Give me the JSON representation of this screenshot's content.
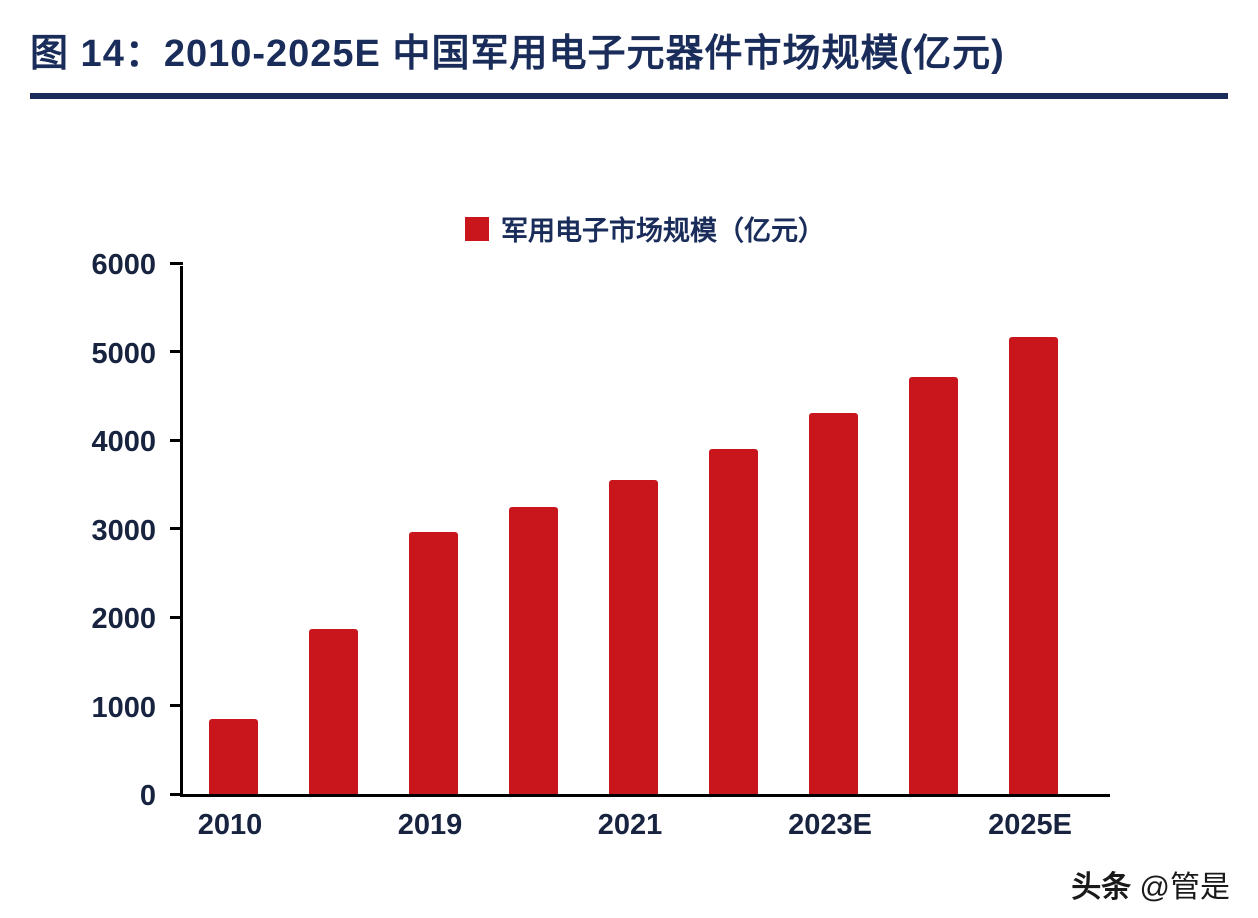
{
  "header": {
    "title": "图 14：2010-2025E 中国军用电子元器件市场规模(亿元)"
  },
  "chart_data": {
    "type": "bar",
    "title": "2010-2025E 中国军用电子元器件市场规模(亿元)",
    "legend": "军用电子市场规模（亿元）",
    "categories": [
      "2010",
      "",
      "2019",
      "",
      "2021",
      "",
      "2023E",
      "",
      "2025E"
    ],
    "values": [
      850,
      1860,
      2960,
      3240,
      3550,
      3900,
      4300,
      4710,
      5160
    ],
    "ylim": [
      0,
      6000
    ],
    "yticks": [
      0,
      1000,
      2000,
      3000,
      4000,
      5000,
      6000
    ],
    "grid": false,
    "legend_position": "top-center",
    "bar_color": "#c9161d",
    "title_color": "#1a2d5a",
    "axis_text_color": "#17233f"
  },
  "footer": {
    "watermark_brand": "头条",
    "watermark_handle": "@管是"
  }
}
